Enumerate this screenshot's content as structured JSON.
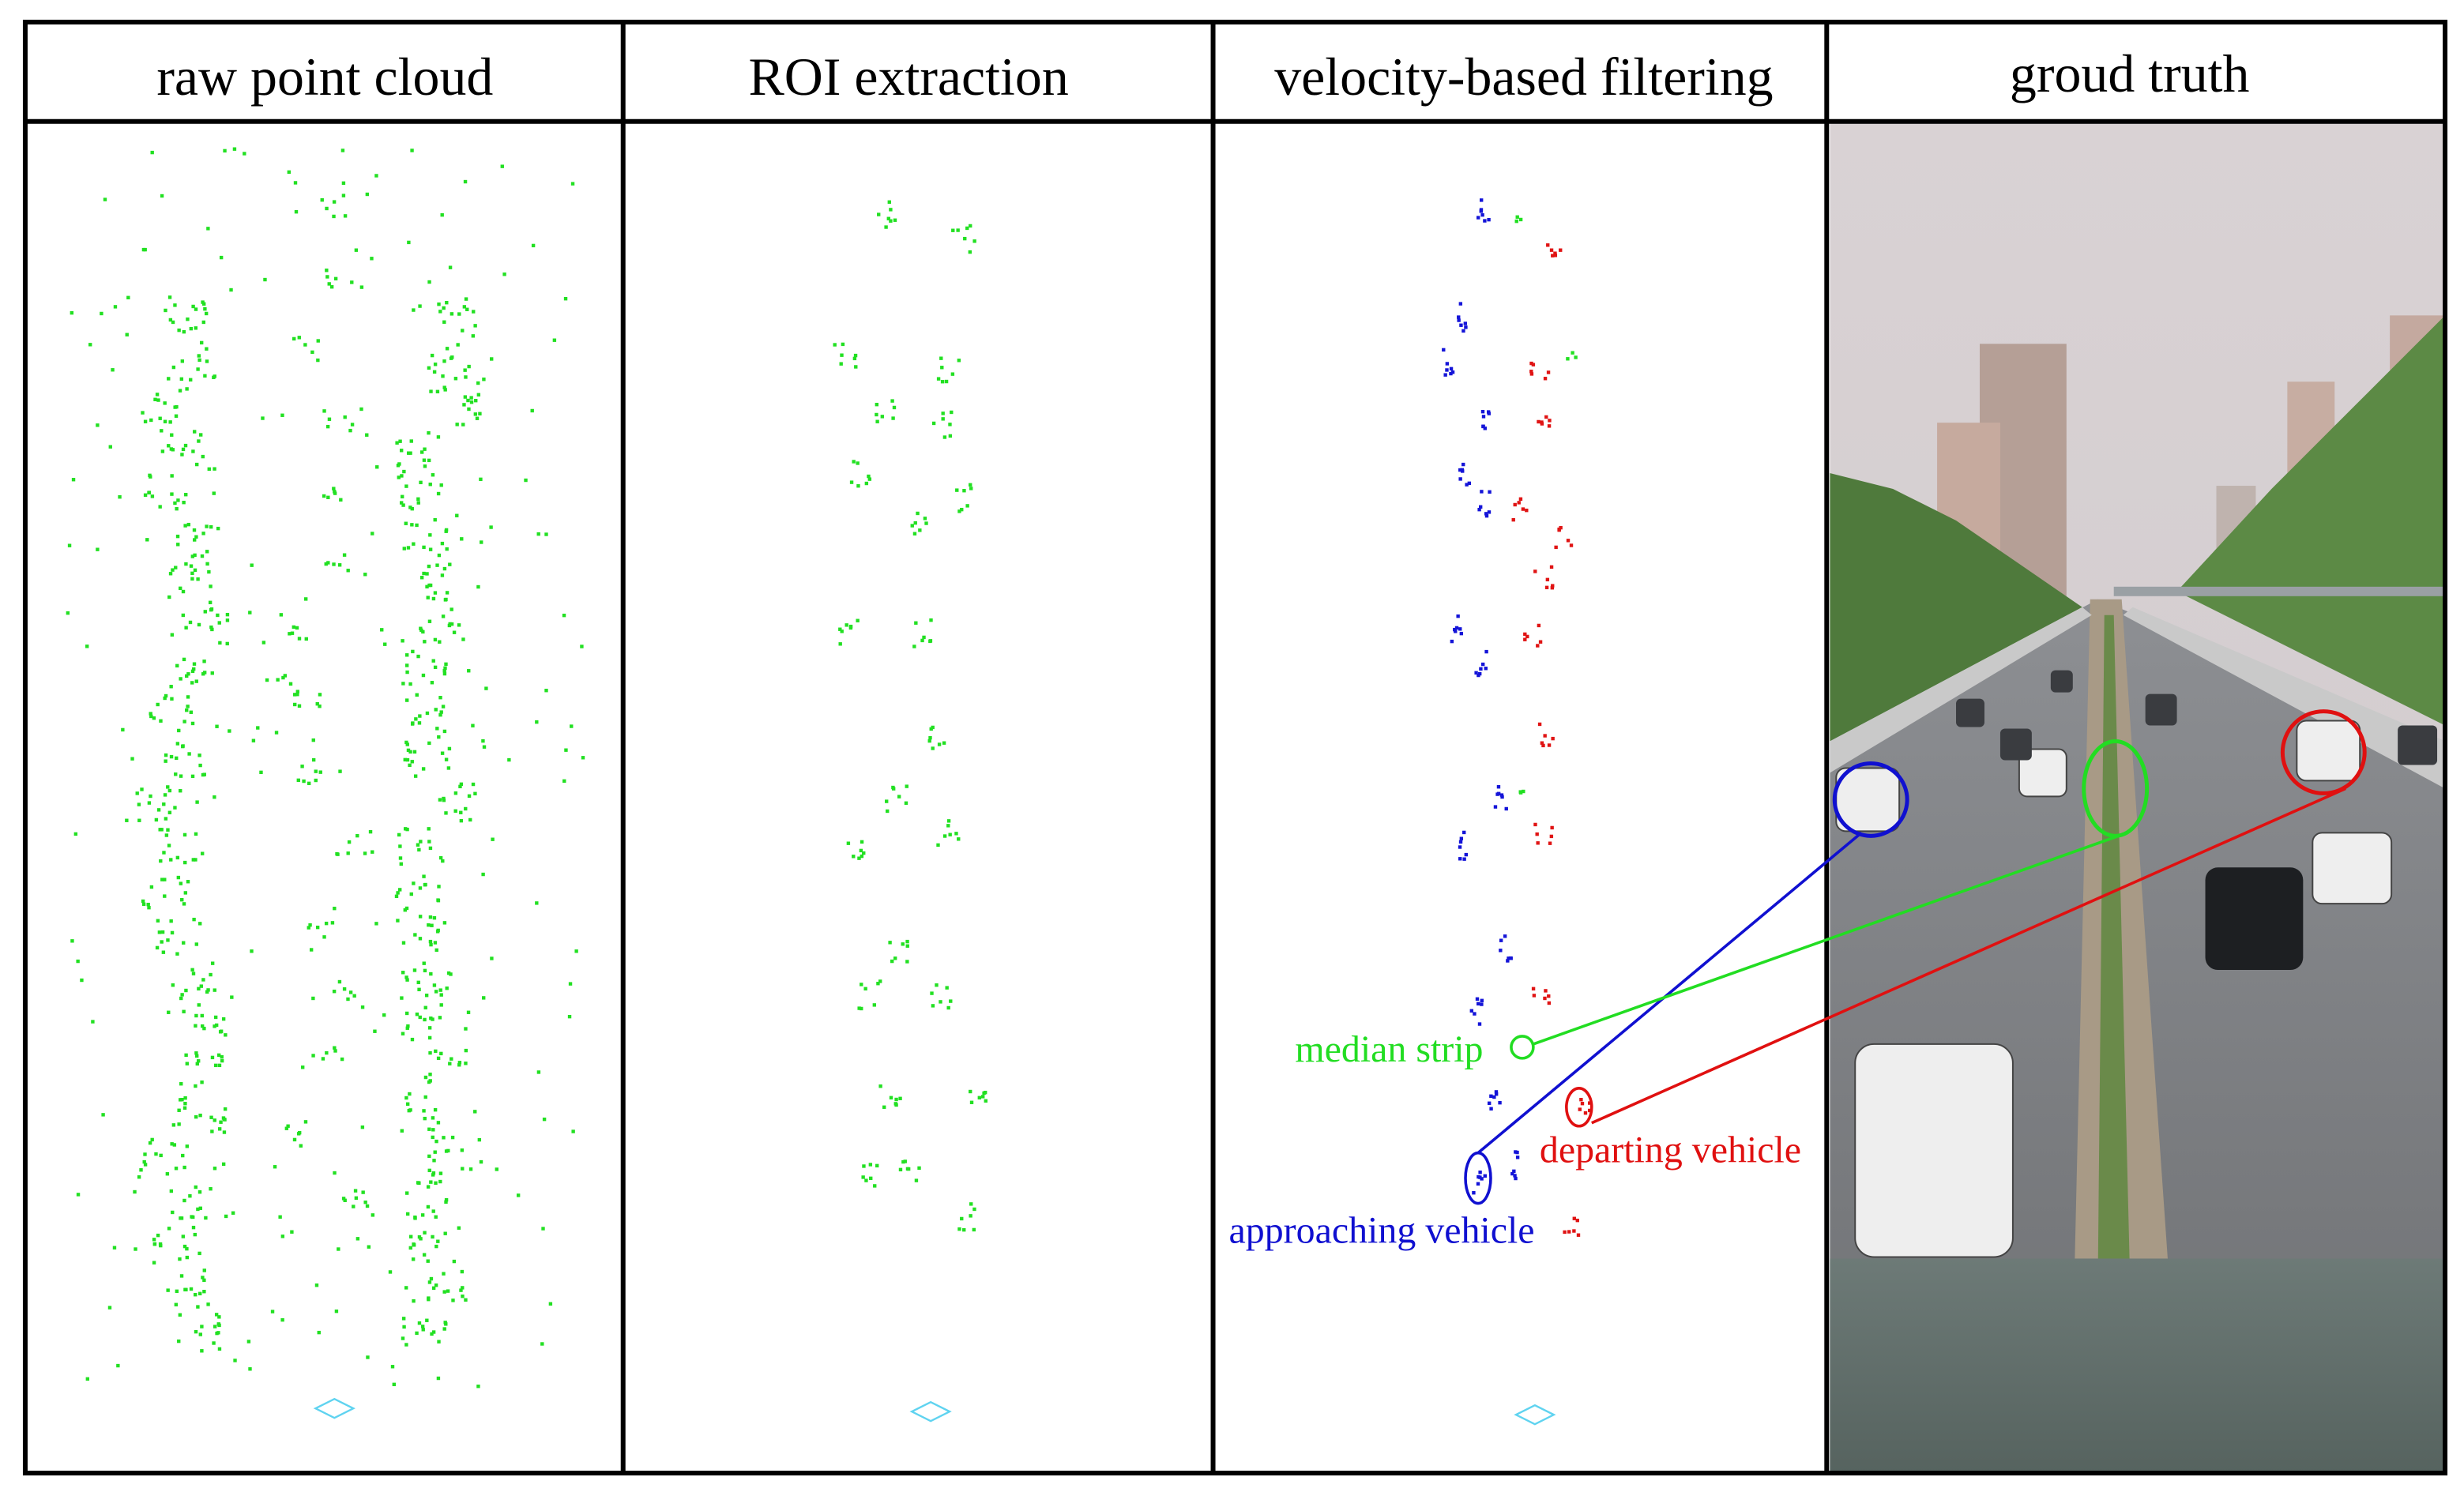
{
  "panels": [
    {
      "title": "raw point cloud"
    },
    {
      "title": "ROI extraction"
    },
    {
      "title": "velocity-based filtering"
    },
    {
      "title": "groud truth"
    }
  ],
  "annotations": {
    "median_strip": "median strip",
    "departing_vehicle": "departing vehicle",
    "approaching_vehicle": "approaching vehicle"
  }
}
